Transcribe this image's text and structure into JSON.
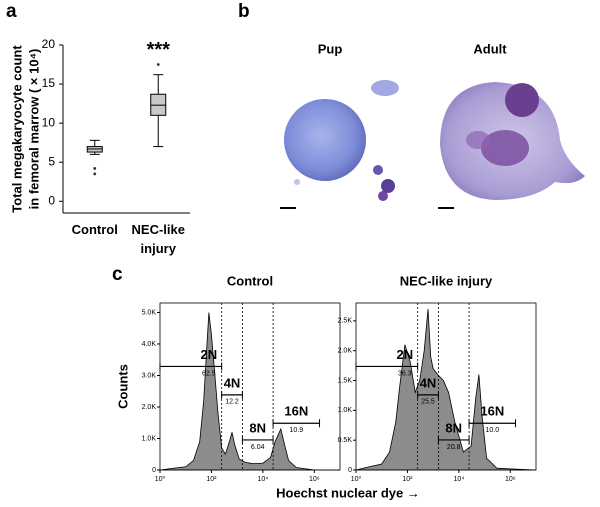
{
  "figure": {
    "panel_labels": [
      "a",
      "b",
      "c"
    ]
  },
  "micrographs": {
    "labels": [
      "Pup",
      "Adult"
    ]
  },
  "chart_data": [
    {
      "type": "box",
      "title": "***",
      "ylabel": [
        "Total megakaryocyte count",
        "in femoral marrow ( × 10⁴)"
      ],
      "categories": [
        "Control",
        "NEC-like injury"
      ],
      "boxes": [
        {
          "min": 6.0,
          "q1": 6.3,
          "median": 6.7,
          "q3": 7.0,
          "max": 7.8,
          "outliers": [
            4.2,
            3.5
          ]
        },
        {
          "min": 7.0,
          "q1": 11.0,
          "median": 12.3,
          "q3": 13.7,
          "max": 16.2,
          "outliers": [
            17.5
          ]
        }
      ],
      "color": "#c8c8c8",
      "ylim": [
        -1.5,
        20
      ],
      "yticks": [
        0,
        5,
        10,
        15,
        20
      ]
    },
    {
      "type": "histogram",
      "title": "Control",
      "ylabel": "Counts",
      "xlabel": "Hoechst nuclear dye →",
      "log_x": true,
      "color": "#8c8c8c",
      "x": [
        1,
        3,
        10,
        20,
        35,
        50,
        65,
        80,
        100,
        130,
        180,
        250,
        350,
        500,
        630,
        800,
        1200,
        2000,
        4000,
        10000,
        20000,
        30000,
        50000,
        70000,
        100000,
        200000,
        1000000,
        10000000
      ],
      "values": [
        0,
        50,
        100,
        300,
        900,
        2200,
        3800,
        5000,
        4300,
        3200,
        1800,
        700,
        500,
        900,
        1200,
        800,
        350,
        250,
        200,
        220,
        400,
        900,
        1300,
        800,
        300,
        80,
        0,
        0
      ],
      "xlim": [
        1,
        10000000
      ],
      "xticks": [
        {
          "value": 1,
          "label": "10⁰"
        },
        {
          "value": 100,
          "label": "10²"
        },
        {
          "value": 10000,
          "label": "10⁴"
        },
        {
          "value": 1000000,
          "label": "10⁶"
        }
      ],
      "ylim": [
        0,
        5300
      ],
      "yticks": [
        0,
        {
          "value": 1000,
          "label": "1.0K"
        },
        {
          "value": 2000,
          "label": "2.0K"
        },
        {
          "value": 3000,
          "label": "3.0K"
        },
        {
          "value": 4000,
          "label": "4.0K"
        },
        {
          "value": 5000,
          "label": "5.0K"
        }
      ],
      "gates": [
        {
          "name": "2N",
          "percent": 62.5,
          "range": [
            1,
            250
          ]
        },
        {
          "name": "4N",
          "percent": 12.2,
          "range": [
            250,
            1600
          ]
        },
        {
          "name": "8N",
          "percent": 6.04,
          "range": [
            1600,
            25000
          ]
        },
        {
          "name": "16N",
          "percent": 10.9,
          "range": [
            25000,
            1600000
          ]
        }
      ]
    },
    {
      "type": "histogram",
      "title": "NEC-like injury",
      "log_x": true,
      "color": "#8c8c8c",
      "x": [
        1,
        3,
        10,
        20,
        35,
        50,
        80,
        130,
        200,
        300,
        450,
        630,
        800,
        1000,
        1500,
        2500,
        4000,
        7000,
        15000,
        30000,
        45000,
        60000,
        80000,
        120000,
        300000,
        10000000
      ],
      "values": [
        0,
        50,
        100,
        300,
        800,
        1400,
        2100,
        1800,
        1300,
        1500,
        2000,
        2700,
        1900,
        1700,
        1600,
        1500,
        1300,
        800,
        300,
        400,
        1200,
        1600,
        900,
        200,
        30,
        0
      ],
      "xlim": [
        1,
        10000000
      ],
      "xticks": [
        {
          "value": 1,
          "label": "10⁰"
        },
        {
          "value": 100,
          "label": "10²"
        },
        {
          "value": 10000,
          "label": "10⁴"
        },
        {
          "value": 1000000,
          "label": "10⁶"
        }
      ],
      "ylim": [
        0,
        2800
      ],
      "yticks": [
        0,
        {
          "value": 500,
          "label": "0.5K"
        },
        {
          "value": 1000,
          "label": "1.0K"
        },
        {
          "value": 1500,
          "label": "1.5K"
        },
        {
          "value": 2000,
          "label": "2.0K"
        },
        {
          "value": 2500,
          "label": "2.5K"
        }
      ],
      "gates": [
        {
          "name": "2N",
          "percent": 36.3,
          "range": [
            1,
            250
          ]
        },
        {
          "name": "4N",
          "percent": 25.5,
          "range": [
            250,
            1600
          ]
        },
        {
          "name": "8N",
          "percent": 20.8,
          "range": [
            1600,
            25000
          ]
        },
        {
          "name": "16N",
          "percent": 10.0,
          "value_label": "10.0",
          "range": [
            25000,
            1600000
          ]
        }
      ]
    }
  ]
}
